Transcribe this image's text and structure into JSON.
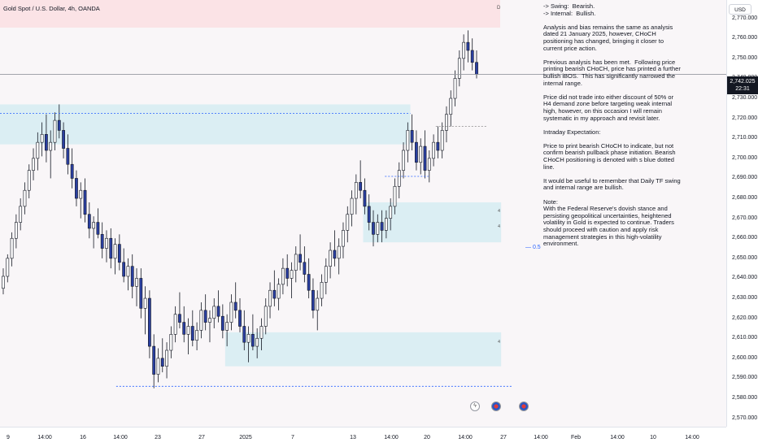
{
  "symbol": {
    "title": "Gold Spot / U.S. Dollar, 4h, OANDA"
  },
  "marker_d": "D",
  "currency": "USD",
  "current_price": {
    "price": "2,742.025",
    "countdown": "22:31",
    "value": 2742.025
  },
  "fib_label": "0.5",
  "zone_numbers": [
    "4",
    "4",
    "4"
  ],
  "icons": [
    "lightning-icon",
    "us-flag-icon",
    "us-flag-icon"
  ],
  "colors": {
    "bull": "#ffffff",
    "bear": "#2a3fa0",
    "zone": "#dbeef3",
    "dotted_blue": "#2962ff",
    "top_band": "#fbe3e6"
  },
  "notes": {
    "lines": [
      "-> Swing:  Bearish.\n-> Internal:  Bullish.",
      "Analysis and bias remains the same as analysis dated 21 January 2025, however, CHoCH positioning has changed, bringing it closer to current price action.",
      "Previous analysis has been met.  Following price printing bearish CHoCH, price has printed a further bullish iBOS.  This has significantly narrowed the internal range.",
      "Price did not trade into either discount of 50% or H4 demand zone before targeting weak internal high, however, on this occasion I will remain systematic in my approach and revisit later.",
      "Intraday Expectation:",
      "Price to print bearish CHoCH to indicate, but not confirm bearish pullback phase initiation. Bearish CHoCH positioning is denoted with s blue dotted line.",
      "It would be useful to remember that Daily TF swing and internal range are bullish.",
      "Note:\nWith the Federal Reserve's dovish stance and persisting geopolitical uncertainties, heightened volatility in Gold is expected to continue. Traders should proceed with caution and apply risk management strategies in this high-volatility environment."
    ]
  },
  "chart_data": {
    "type": "candlestick",
    "y_axis": {
      "ticks": [
        "2,770.000",
        "2,760.000",
        "2,750.000",
        "2,740.000",
        "2,730.000",
        "2,720.000",
        "2,710.000",
        "2,700.000",
        "2,690.000",
        "2,680.000",
        "2,670.000",
        "2,660.000",
        "2,650.000",
        "2,640.000",
        "2,630.000",
        "2,620.000",
        "2,610.000",
        "2,600.000",
        "2,590.000",
        "2,580.000",
        "2,570.000"
      ],
      "tick_values": [
        2770,
        2760,
        2750,
        2740,
        2730,
        2720,
        2710,
        2700,
        2690,
        2680,
        2670,
        2660,
        2650,
        2640,
        2630,
        2620,
        2610,
        2600,
        2590,
        2580,
        2570
      ],
      "range": [
        2565.8,
        2779.2
      ]
    },
    "x_axis": {
      "labels": [
        "9",
        "14:00",
        "16",
        "14:00",
        "23",
        "27",
        "2025",
        "7",
        "13",
        "14:00",
        "20",
        "14:00",
        "27",
        "14:00",
        "Feb",
        "14:00",
        "10",
        "14:00"
      ],
      "label_positions": [
        10,
        55,
        102,
        148,
        194,
        248,
        302,
        360,
        434,
        481,
        525,
        572,
        619,
        665,
        708,
        759,
        803,
        851
      ]
    },
    "candles": [
      [
        2635,
        2645,
        2632,
        2641
      ],
      [
        2641,
        2652,
        2638,
        2650
      ],
      [
        2650,
        2663,
        2646,
        2660
      ],
      [
        2660,
        2672,
        2655,
        2668
      ],
      [
        2668,
        2680,
        2664,
        2676
      ],
      [
        2676,
        2688,
        2672,
        2684
      ],
      [
        2684,
        2697,
        2680,
        2694
      ],
      [
        2694,
        2705,
        2689,
        2700
      ],
      [
        2700,
        2713,
        2694,
        2708
      ],
      [
        2708,
        2718,
        2701,
        2712
      ],
      [
        2712,
        2722,
        2698,
        2704
      ],
      [
        2704,
        2714,
        2690,
        2708
      ],
      [
        2708,
        2723,
        2704,
        2719
      ],
      [
        2719,
        2727,
        2710,
        2714
      ],
      [
        2714,
        2718,
        2700,
        2705
      ],
      [
        2705,
        2712,
        2692,
        2697
      ],
      [
        2697,
        2705,
        2685,
        2690
      ],
      [
        2690,
        2694,
        2676,
        2680
      ],
      [
        2680,
        2688,
        2670,
        2684
      ],
      [
        2684,
        2690,
        2668,
        2672
      ],
      [
        2672,
        2678,
        2660,
        2665
      ],
      [
        2665,
        2671,
        2655,
        2668
      ],
      [
        2668,
        2675,
        2660,
        2662
      ],
      [
        2662,
        2668,
        2650,
        2655
      ],
      [
        2655,
        2664,
        2648,
        2660
      ],
      [
        2660,
        2665,
        2645,
        2650
      ],
      [
        2650,
        2660,
        2642,
        2657
      ],
      [
        2657,
        2662,
        2644,
        2648
      ],
      [
        2648,
        2655,
        2638,
        2641
      ],
      [
        2641,
        2650,
        2634,
        2646
      ],
      [
        2646,
        2652,
        2630,
        2636
      ],
      [
        2636,
        2645,
        2626,
        2640
      ],
      [
        2640,
        2645,
        2620,
        2625
      ],
      [
        2625,
        2636,
        2612,
        2630
      ],
      [
        2630,
        2634,
        2600,
        2606
      ],
      [
        2606,
        2612,
        2585,
        2592
      ],
      [
        2592,
        2605,
        2588,
        2600
      ],
      [
        2600,
        2610,
        2593,
        2596
      ],
      [
        2596,
        2608,
        2590,
        2604
      ],
      [
        2604,
        2616,
        2600,
        2612
      ],
      [
        2612,
        2626,
        2608,
        2622
      ],
      [
        2622,
        2633,
        2615,
        2618
      ],
      [
        2618,
        2626,
        2608,
        2612
      ],
      [
        2612,
        2620,
        2602,
        2616
      ],
      [
        2616,
        2624,
        2606,
        2609
      ],
      [
        2609,
        2618,
        2604,
        2614
      ],
      [
        2614,
        2628,
        2610,
        2624
      ],
      [
        2624,
        2632,
        2614,
        2618
      ],
      [
        2618,
        2624,
        2608,
        2620
      ],
      [
        2620,
        2630,
        2615,
        2626
      ],
      [
        2626,
        2634,
        2618,
        2621
      ],
      [
        2621,
        2627,
        2610,
        2614
      ],
      [
        2614,
        2622,
        2606,
        2618
      ],
      [
        2618,
        2632,
        2614,
        2628
      ],
      [
        2628,
        2638,
        2620,
        2624
      ],
      [
        2624,
        2630,
        2613,
        2616
      ],
      [
        2616,
        2624,
        2604,
        2608
      ],
      [
        2608,
        2616,
        2598,
        2612
      ],
      [
        2612,
        2622,
        2604,
        2606
      ],
      [
        2606,
        2615,
        2600,
        2610
      ],
      [
        2610,
        2620,
        2604,
        2616
      ],
      [
        2616,
        2630,
        2612,
        2626
      ],
      [
        2626,
        2638,
        2620,
        2634
      ],
      [
        2634,
        2644,
        2626,
        2630
      ],
      [
        2630,
        2640,
        2624,
        2637
      ],
      [
        2637,
        2650,
        2632,
        2645
      ],
      [
        2645,
        2652,
        2636,
        2640
      ],
      [
        2640,
        2648,
        2630,
        2644
      ],
      [
        2644,
        2656,
        2638,
        2652
      ],
      [
        2652,
        2662,
        2644,
        2648
      ],
      [
        2648,
        2656,
        2638,
        2642
      ],
      [
        2642,
        2650,
        2630,
        2634
      ],
      [
        2634,
        2640,
        2620,
        2624
      ],
      [
        2624,
        2634,
        2614,
        2630
      ],
      [
        2630,
        2642,
        2626,
        2638
      ],
      [
        2638,
        2650,
        2632,
        2646
      ],
      [
        2646,
        2658,
        2640,
        2654
      ],
      [
        2654,
        2664,
        2646,
        2650
      ],
      [
        2650,
        2660,
        2642,
        2656
      ],
      [
        2656,
        2668,
        2650,
        2664
      ],
      [
        2664,
        2676,
        2658,
        2672
      ],
      [
        2672,
        2684,
        2666,
        2680
      ],
      [
        2680,
        2692,
        2672,
        2688
      ],
      [
        2688,
        2699,
        2680,
        2684
      ],
      [
        2684,
        2690,
        2672,
        2676
      ],
      [
        2676,
        2682,
        2664,
        2668
      ],
      [
        2668,
        2674,
        2656,
        2662
      ],
      [
        2662,
        2672,
        2658,
        2668
      ],
      [
        2668,
        2674,
        2658,
        2664
      ],
      [
        2664,
        2674,
        2660,
        2670
      ],
      [
        2670,
        2680,
        2664,
        2676
      ],
      [
        2676,
        2690,
        2672,
        2686
      ],
      [
        2686,
        2698,
        2680,
        2694
      ],
      [
        2694,
        2708,
        2690,
        2704
      ],
      [
        2704,
        2718,
        2698,
        2714
      ],
      [
        2714,
        2722,
        2704,
        2708
      ],
      [
        2708,
        2714,
        2694,
        2698
      ],
      [
        2698,
        2710,
        2692,
        2706
      ],
      [
        2706,
        2714,
        2690,
        2694
      ],
      [
        2694,
        2704,
        2688,
        2700
      ],
      [
        2700,
        2712,
        2696,
        2708
      ],
      [
        2708,
        2716,
        2700,
        2704
      ],
      [
        2704,
        2718,
        2700,
        2714
      ],
      [
        2714,
        2726,
        2708,
        2722
      ],
      [
        2722,
        2734,
        2716,
        2730
      ],
      [
        2730,
        2744,
        2726,
        2740
      ],
      [
        2740,
        2754,
        2736,
        2750
      ],
      [
        2750,
        2762,
        2744,
        2758
      ],
      [
        2758,
        2764,
        2748,
        2754
      ],
      [
        2754,
        2760,
        2744,
        2748
      ],
      [
        2748,
        2754,
        2740,
        2742
      ]
    ],
    "zones": [
      {
        "y_top": 2727,
        "y_bottom": 2707,
        "x_start_frac": 0.0,
        "x_end_frac": 0.565
      },
      {
        "y_top": 2678,
        "y_bottom": 2658,
        "x_start_frac": 0.5,
        "x_end_frac": 0.69
      },
      {
        "y_top": 2613,
        "y_bottom": 2596,
        "x_start_frac": 0.31,
        "x_end_frac": 0.69
      }
    ],
    "lines": [
      {
        "y": 2722.5,
        "style": "dotted",
        "color": "#2962ff",
        "x_start_frac": 0.0,
        "x_end_frac": 0.565
      },
      {
        "y": 2691,
        "style": "dotted",
        "color": "#2962ff",
        "x_start_frac": 0.53,
        "x_end_frac": 0.59
      },
      {
        "y": 2716,
        "style": "dotted",
        "color": "#888888",
        "x_start_frac": 0.6,
        "x_end_frac": 0.67
      },
      {
        "y": 2586,
        "style": "dotted",
        "color": "#2962ff",
        "x_start_frac": 0.16,
        "x_end_frac": 0.705
      },
      {
        "y": 2742.025,
        "style": "solid",
        "color": "#9598a1",
        "x_start_frac": 0.0,
        "x_end_frac": 1.0
      }
    ]
  }
}
